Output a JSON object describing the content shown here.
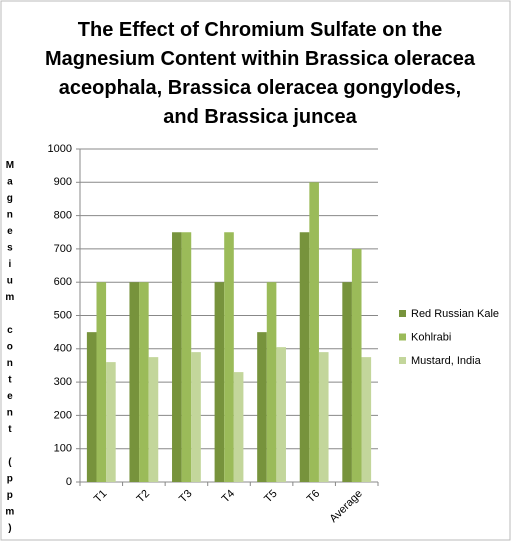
{
  "chart_data": {
    "type": "bar",
    "title": "The Effect of Chromium Sulfate on the Magnesium Content within Brassica oleracea aceophala, Brassica oleracea gongylodes, and Brassica  juncea",
    "y_label": "Magnesium content (ppm)",
    "categories": [
      "T1",
      "T2",
      "T3",
      "T4",
      "T5",
      "T6",
      "Average"
    ],
    "series": [
      {
        "name": "Red Russian Kale",
        "color": "#77933c",
        "values": [
          450,
          600,
          750,
          600,
          450,
          750,
          600
        ]
      },
      {
        "name": "Kohlrabi",
        "color": "#9bbb59",
        "values": [
          600,
          600,
          750,
          750,
          600,
          900,
          700
        ]
      },
      {
        "name": "Mustard, India",
        "color": "#c3d69b",
        "values": [
          360,
          375,
          390,
          330,
          405,
          390,
          375
        ]
      }
    ],
    "ylim": [
      0,
      1000
    ],
    "yticks": [
      0,
      100,
      200,
      300,
      400,
      500,
      600,
      700,
      800,
      900,
      1000
    ],
    "grid": true,
    "legend": "right"
  }
}
